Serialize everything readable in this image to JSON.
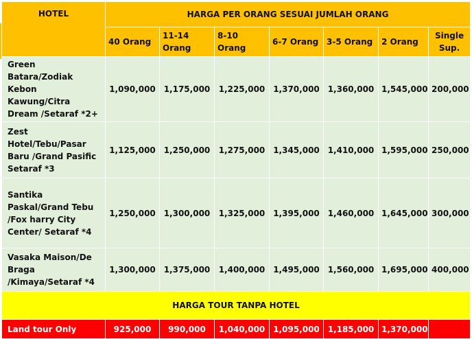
{
  "header": {
    "hotel": "HOTEL",
    "harga_per_orang": "HARGA PER ORANG SESUAI JUMLAH ORANG",
    "columns": [
      "40 Orang",
      "11-14 Orang",
      "8-10 Orang",
      "6-7 Orang",
      "3-5 Orang",
      "2 Orang"
    ],
    "single_sup": "Single Sup."
  },
  "rows": [
    {
      "hotel": "Green Batara/Zodiak Kebon Kawung/Citra Dream /Setaraf *2+",
      "prices": [
        "1,090,000",
        "1,175,000",
        "1,225,000",
        "1,370,000",
        "1,360,000",
        "1,545,000"
      ],
      "single": "200,000"
    },
    {
      "hotel": "Zest Hotel/Tebu/Pasar Baru /Grand Pasific Setaraf *3",
      "prices": [
        "1,125,000",
        "1,250,000",
        "1,275,000",
        "1,345,000",
        "1,410,000",
        "1,595,000"
      ],
      "single": "250,000"
    },
    {
      "hotel": "Santika Paskal/Grand Tebu /Fox harry City Center/ Setaraf *4",
      "prices": [
        "1,250,000",
        "1,300,000",
        "1,325,000",
        "1,395,000",
        "1,460,000",
        "1,645,000"
      ],
      "single": "300,000"
    },
    {
      "hotel": "Vasaka Maison/De Braga /Kimaya/Setaraf *4",
      "prices": [
        "1,300,000",
        "1,375,000",
        "1,400,000",
        "1,495,000",
        "1,560,000",
        "1,695,000"
      ],
      "single": "400,000"
    }
  ],
  "tour_tanpa_hotel": "HARGA TOUR TANPA HOTEL",
  "land_tour": {
    "label": "Land tour Only",
    "prices": [
      "925,000",
      "990,000",
      "1,040,000",
      "1,095,000",
      "1,185,000",
      "1,370,000"
    ],
    "single": ""
  },
  "colors": {
    "header": "#ffc000",
    "body": "#e2efda",
    "tour_banner": "#ffff00",
    "land_tour": "#ff0000"
  }
}
